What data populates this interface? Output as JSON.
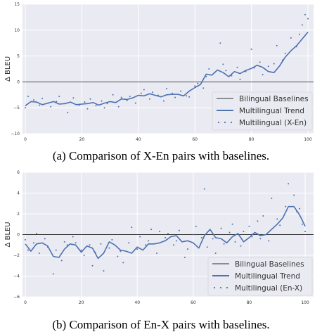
{
  "colors": {
    "panel_bg": "#eaeaf2",
    "grid": "#ffffff",
    "baseline": "#303030",
    "trend": "#4c72b0",
    "points": "#4c72b0",
    "text": "#333333"
  },
  "captions": {
    "a": "(a) Comparison of X-En pairs with baselines.",
    "b": "(b) Comparison of En-X pairs with baselines."
  },
  "chart_data": [
    {
      "type": "line",
      "ylabel": "Δ BLEU",
      "xlabel": "",
      "xlim": [
        -1,
        102
      ],
      "ylim": [
        -10,
        15
      ],
      "xticks": [
        0,
        20,
        40,
        60,
        80,
        100
      ],
      "yticks": [
        -10,
        -5,
        0,
        5,
        10,
        15
      ],
      "grid": true,
      "legend": {
        "position": "lower-right",
        "entries": [
          "Bilingual Baselines",
          "Multilingual Trend",
          "Multilingual (X-En)"
        ]
      },
      "series": [
        {
          "name": "Bilingual Baselines",
          "kind": "hline",
          "y": 0
        },
        {
          "name": "Multilingual Trend",
          "kind": "line",
          "x": [
            0,
            2,
            4,
            6,
            8,
            10,
            12,
            14,
            16,
            18,
            20,
            22,
            24,
            26,
            28,
            30,
            32,
            34,
            36,
            38,
            40,
            42,
            44,
            46,
            48,
            50,
            52,
            54,
            56,
            58,
            60,
            62,
            64,
            66,
            68,
            70,
            72,
            74,
            76,
            78,
            80,
            82,
            84,
            86,
            88,
            90,
            92,
            94,
            96,
            98,
            100
          ],
          "y": [
            -4.6,
            -3.8,
            -3.9,
            -4.4,
            -4.1,
            -3.8,
            -4.3,
            -4.2,
            -3.9,
            -4.4,
            -4.3,
            -4.2,
            -4.0,
            -4.5,
            -4.1,
            -3.8,
            -4.0,
            -3.3,
            -3.4,
            -3.1,
            -2.6,
            -2.7,
            -2.3,
            -2.6,
            -2.9,
            -2.5,
            -2.4,
            -2.4,
            -2.7,
            -1.8,
            -1.1,
            -0.5,
            1.5,
            1.3,
            2.3,
            1.8,
            1.0,
            2.0,
            1.6,
            2.2,
            2.6,
            3.2,
            2.8,
            2.0,
            1.8,
            3.1,
            4.8,
            6.0,
            7.0,
            8.3,
            9.6
          ]
        },
        {
          "name": "Multilingual (X-En)",
          "kind": "scatter",
          "x": [
            0,
            1,
            3,
            5,
            6,
            8,
            9,
            11,
            12,
            14,
            15,
            17,
            19,
            21,
            22,
            23,
            25,
            27,
            28,
            29,
            31,
            33,
            34,
            36,
            37,
            39,
            41,
            42,
            44,
            45,
            47,
            49,
            50,
            52,
            53,
            55,
            57,
            58,
            60,
            61,
            63,
            64,
            65,
            67,
            69,
            70,
            71,
            73,
            75,
            76,
            78,
            80,
            81,
            83,
            84,
            86,
            88,
            89,
            91,
            92,
            94,
            96,
            97,
            98,
            99,
            100
          ],
          "y": [
            -5,
            -2.8,
            -3.5,
            -4.5,
            -3.2,
            -4.1,
            -4.8,
            -3.8,
            -2.8,
            -4.2,
            -5.9,
            -3.1,
            -4.5,
            -3.9,
            -5.2,
            -3.3,
            -4.6,
            -3.7,
            -5.0,
            -4.2,
            -2.5,
            -4.8,
            -3.0,
            -3.6,
            -2.8,
            -4.1,
            -2.2,
            -1.5,
            -3.3,
            -2.0,
            -2.6,
            -3.7,
            -1.3,
            -2.2,
            -3.0,
            -1.8,
            -2.7,
            -2.9,
            -0.8,
            -0.3,
            -1.2,
            1.0,
            2.5,
            1.8,
            7.5,
            3.4,
            2.2,
            1.2,
            2.8,
            0.5,
            2.0,
            6.3,
            2.7,
            3.8,
            1.4,
            3.0,
            3.5,
            7.0,
            4.2,
            5.5,
            8.5,
            6.8,
            9.2,
            11.0,
            13.0,
            12.2
          ]
        }
      ]
    },
    {
      "type": "line",
      "ylabel": "Δ BLEU",
      "xlabel": "",
      "xlim": [
        -1,
        103
      ],
      "ylim": [
        -6,
        6
      ],
      "xticks": [
        0,
        20,
        40,
        60,
        80,
        100
      ],
      "yticks": [
        -6,
        -4,
        -2,
        0,
        2,
        4,
        6
      ],
      "grid": true,
      "legend": {
        "position": "lower-right",
        "entries": [
          "Bilingual Baselines",
          "Multilingual Trend",
          "Multilingual (En-X)"
        ]
      },
      "series": [
        {
          "name": "Bilingual Baselines",
          "kind": "hline",
          "y": 0
        },
        {
          "name": "Multilingual Trend",
          "kind": "line",
          "x": [
            0,
            2,
            4,
            6,
            8,
            10,
            12,
            14,
            16,
            18,
            20,
            22,
            24,
            26,
            28,
            30,
            32,
            34,
            36,
            38,
            40,
            42,
            44,
            46,
            48,
            50,
            52,
            54,
            56,
            58,
            60,
            62,
            64,
            66,
            68,
            70,
            72,
            74,
            76,
            78,
            80,
            82,
            84,
            86,
            88,
            90,
            92,
            94,
            96,
            98,
            100
          ],
          "y": [
            -0.9,
            -1.6,
            -0.9,
            -0.8,
            -1.1,
            -2.1,
            -2.2,
            -1.4,
            -0.9,
            -1.0,
            -1.7,
            -1.1,
            -1.3,
            -2.3,
            -1.8,
            -0.7,
            -1.0,
            -1.5,
            -1.6,
            -1.8,
            -1.2,
            -1.5,
            -0.9,
            -0.9,
            -0.8,
            -0.6,
            -0.2,
            -0.1,
            -0.7,
            -0.6,
            -0.8,
            -1.3,
            -0.1,
            0.5,
            -0.3,
            -0.4,
            -0.8,
            -0.2,
            0.1,
            -0.7,
            -0.3,
            0.2,
            -0.1,
            0.0,
            0.5,
            1.0,
            1.6,
            2.7,
            2.7,
            1.9,
            0.8
          ]
        },
        {
          "name": "Multilingual (En-X)",
          "kind": "scatter",
          "x": [
            0,
            1,
            3,
            4,
            5,
            7,
            8,
            10,
            11,
            13,
            14,
            15,
            17,
            18,
            20,
            21,
            23,
            24,
            25,
            27,
            28,
            30,
            31,
            33,
            34,
            35,
            37,
            38,
            40,
            41,
            43,
            44,
            45,
            47,
            48,
            50,
            51,
            53,
            54,
            55,
            57,
            58,
            60,
            61,
            63,
            64,
            65,
            67,
            68,
            70,
            71,
            73,
            74,
            75,
            77,
            78,
            80,
            81,
            83,
            84,
            85,
            87,
            88,
            90,
            91,
            93,
            94,
            96,
            97,
            98,
            99,
            100
          ],
          "y": [
            -0.5,
            -1.5,
            -0.8,
            0.1,
            -1.8,
            -0.4,
            -1.2,
            -3.8,
            -1.5,
            -2.5,
            -0.7,
            -1.0,
            -0.2,
            -0.8,
            -1.5,
            -2.0,
            -1.0,
            -3.0,
            -1.7,
            -0.9,
            -3.5,
            -1.3,
            -0.5,
            -2.1,
            -1.6,
            -2.7,
            -0.8,
            0.7,
            -1.4,
            -0.2,
            -1.0,
            -0.6,
            0.5,
            -1.8,
            0.3,
            -0.3,
            0.1,
            -1.0,
            -0.6,
            0.4,
            -2.2,
            -1.4,
            0.0,
            0.8,
            -0.3,
            4.4,
            -1.2,
            -0.4,
            -1.8,
            0.6,
            -0.9,
            0.2,
            1.0,
            -0.7,
            -1.1,
            0.3,
            0.8,
            -0.2,
            1.3,
            -0.4,
            1.8,
            -0.6,
            3.5,
            1.5,
            0.9,
            2.7,
            4.9,
            3.8,
            2.2,
            2.5,
            1.0,
            0.3
          ]
        }
      ]
    }
  ]
}
